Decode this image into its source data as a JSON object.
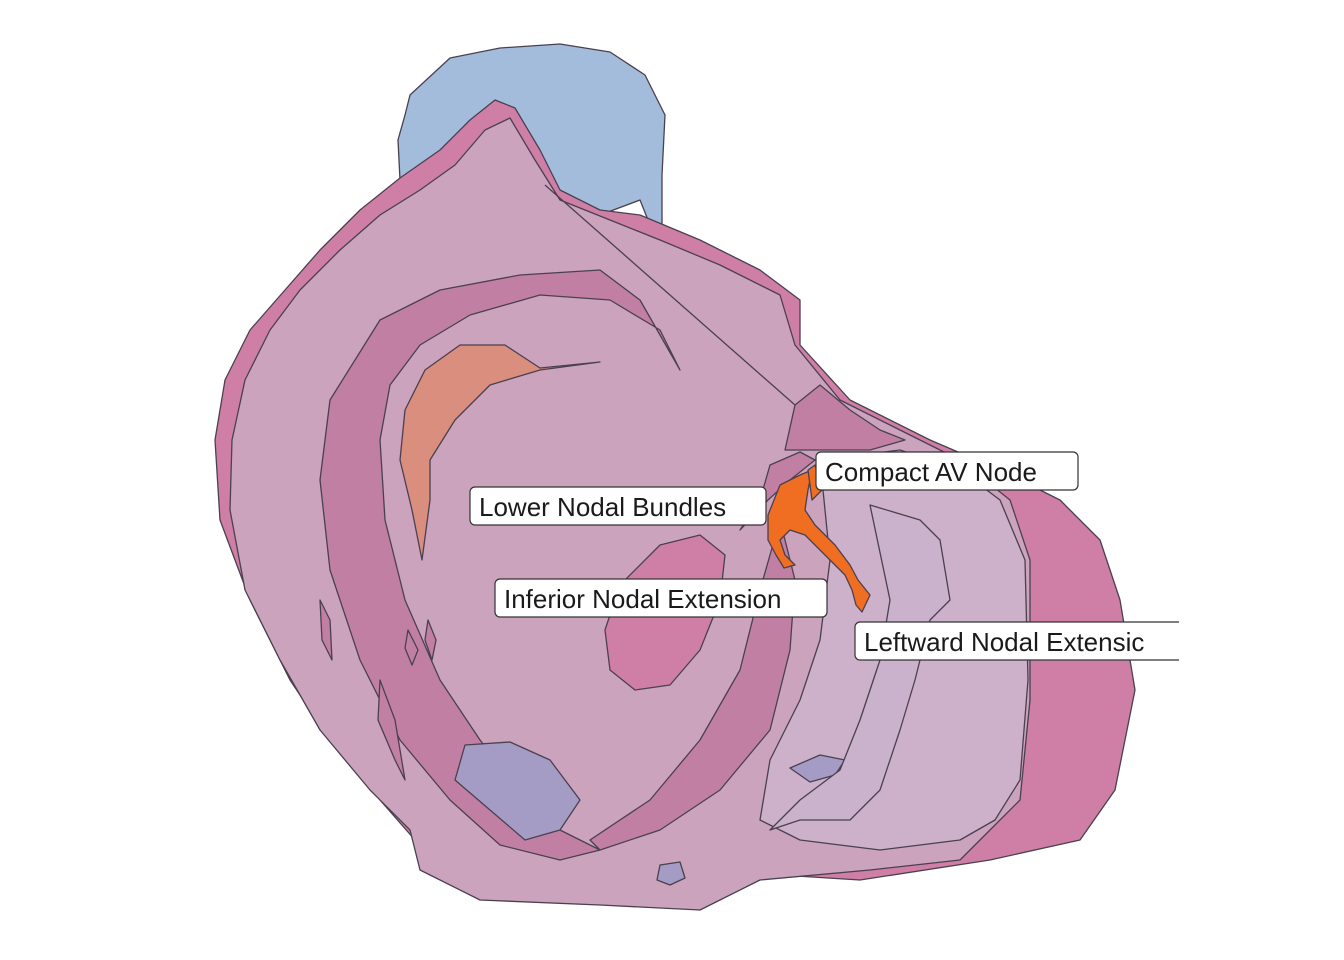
{
  "colors": {
    "tissue": "#cba3bd",
    "tissue_dark": "#c180a3",
    "myocardium": "#cf7fa5",
    "vessel_blue": "#a3bcdb",
    "valve_purple": "#a59cc5",
    "tendon_salmon": "#d98e7e",
    "node_orange": "#ef6e21",
    "outline": "#4a4050"
  },
  "labels": {
    "compact_av_node": "Compact AV Node",
    "lower_nodal_bundles": "Lower Nodal Bundles",
    "inferior_nodal_extension": "Inferior Nodal Extension",
    "leftward_nodal_extension": "Leftward Nodal Extensic"
  }
}
